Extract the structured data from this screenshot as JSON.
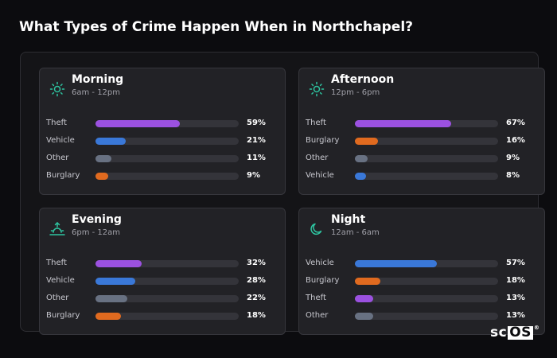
{
  "title": "What Types of Crime Happen When in Northchapel?",
  "logo": {
    "left": "sc",
    "right": "OS",
    "mark": "®"
  },
  "chart_data": [
    {
      "type": "bar",
      "name": "Morning",
      "range": "6am - 12pm",
      "icon": "sun-icon",
      "categories": [
        "Theft",
        "Vehicle",
        "Other",
        "Burglary"
      ],
      "values": [
        59,
        21,
        11,
        9
      ],
      "labels": [
        "59%",
        "21%",
        "11%",
        "9%"
      ],
      "colors": [
        "#9b51e0",
        "#3a78d8",
        "#687182",
        "#e06a1f"
      ],
      "xlim": [
        0,
        100
      ]
    },
    {
      "type": "bar",
      "name": "Afternoon",
      "range": "12pm - 6pm",
      "icon": "sun-icon",
      "categories": [
        "Theft",
        "Burglary",
        "Other",
        "Vehicle"
      ],
      "values": [
        67,
        16,
        9,
        8
      ],
      "labels": [
        "67%",
        "16%",
        "9%",
        "8%"
      ],
      "colors": [
        "#9b51e0",
        "#e06a1f",
        "#687182",
        "#3a78d8"
      ],
      "xlim": [
        0,
        100
      ]
    },
    {
      "type": "bar",
      "name": "Evening",
      "range": "6pm - 12am",
      "icon": "sunset-icon",
      "categories": [
        "Theft",
        "Vehicle",
        "Other",
        "Burglary"
      ],
      "values": [
        32,
        28,
        22,
        18
      ],
      "labels": [
        "32%",
        "28%",
        "22%",
        "18%"
      ],
      "colors": [
        "#9b51e0",
        "#3a78d8",
        "#687182",
        "#e06a1f"
      ],
      "xlim": [
        0,
        100
      ]
    },
    {
      "type": "bar",
      "name": "Night",
      "range": "12am - 6am",
      "icon": "moon-icon",
      "categories": [
        "Vehicle",
        "Burglary",
        "Theft",
        "Other"
      ],
      "values": [
        57,
        18,
        13,
        13
      ],
      "labels": [
        "57%",
        "18%",
        "13%",
        "13%"
      ],
      "colors": [
        "#3a78d8",
        "#e06a1f",
        "#9b51e0",
        "#687182"
      ],
      "xlim": [
        0,
        100
      ]
    }
  ]
}
